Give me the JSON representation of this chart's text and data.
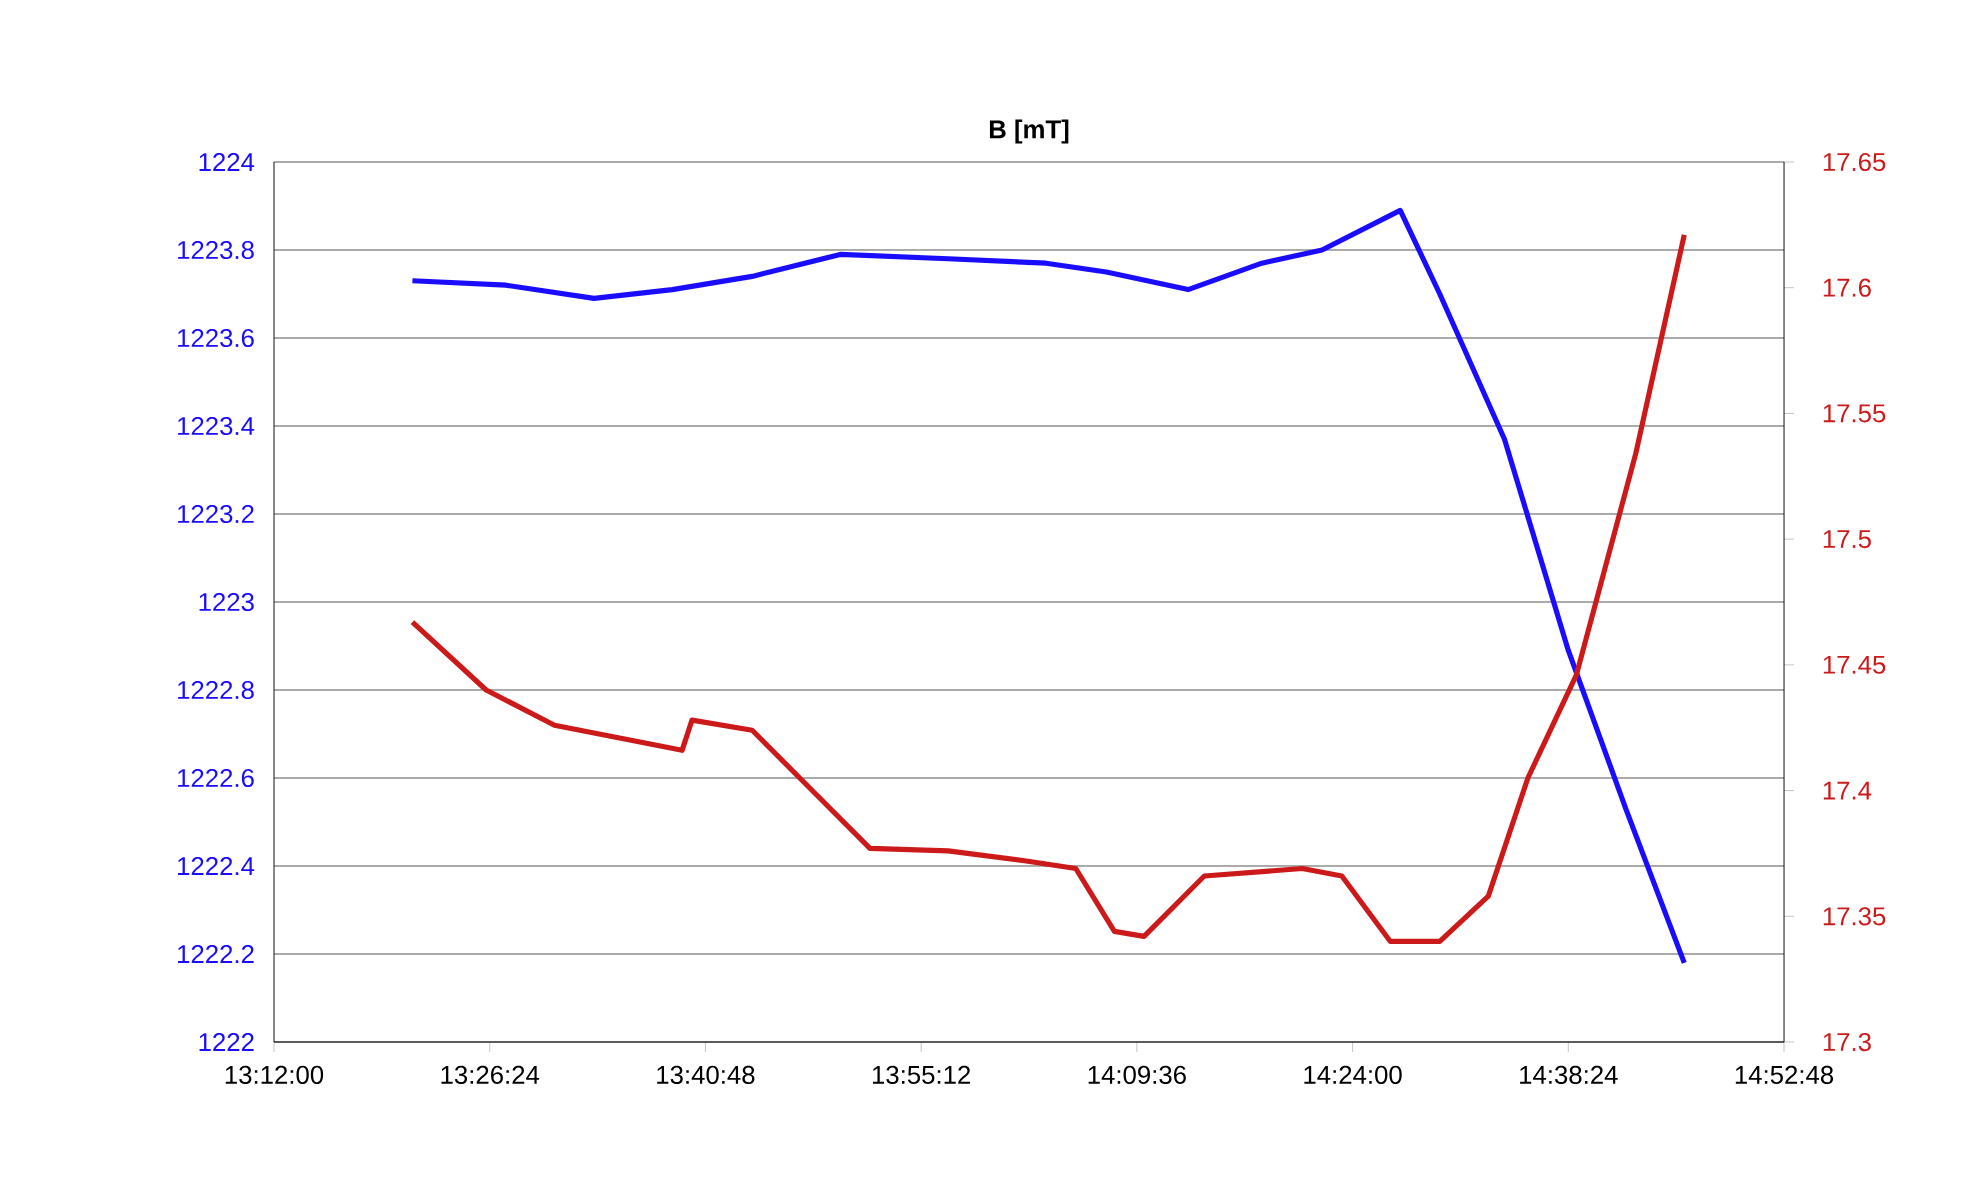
{
  "chart_data": {
    "type": "line",
    "title": "B [mT]",
    "xlim": [
      13.2,
      14.88
    ],
    "xticks": [
      {
        "value": 13.2,
        "label": "13:12:00"
      },
      {
        "value": 13.44,
        "label": "13:26:24"
      },
      {
        "value": 13.68,
        "label": "13:40:48"
      },
      {
        "value": 13.92,
        "label": "13:55:12"
      },
      {
        "value": 14.16,
        "label": "14:09:36"
      },
      {
        "value": 14.4,
        "label": "14:24:00"
      },
      {
        "value": 14.64,
        "label": "14:38:24"
      },
      {
        "value": 14.88,
        "label": "14:52:48"
      }
    ],
    "ylim": [
      1222,
      1224
    ],
    "yticks": [
      1222,
      1222.2,
      1222.4,
      1222.6,
      1222.8,
      1223,
      1223.2,
      1223.4,
      1223.6,
      1223.8,
      1224
    ],
    "y2lim": [
      17.3,
      17.65
    ],
    "y2ticks": [
      17.3,
      17.35,
      17.4,
      17.45,
      17.5,
      17.55,
      17.6,
      17.65
    ],
    "grid": "y",
    "series": [
      {
        "color": "#1a0dff",
        "x": [
          13.354,
          13.458,
          13.556,
          13.643,
          13.732,
          13.83,
          13.95,
          14.059,
          14.126,
          14.217,
          14.299,
          14.366,
          14.453,
          14.497,
          14.569,
          14.64,
          14.704,
          14.769
        ],
        "values": [
          1223.73,
          1223.72,
          1223.69,
          1223.71,
          1223.74,
          1223.79,
          1223.78,
          1223.77,
          1223.75,
          1223.71,
          1223.77,
          1223.8,
          1223.89,
          1223.7,
          1223.37,
          1222.89,
          1222.53,
          1222.18
        ]
      },
      {
        "color": "#cc1a1a",
        "axis": "y2",
        "x": [
          13.354,
          13.436,
          13.512,
          13.654,
          13.665,
          13.732,
          13.796,
          13.863,
          13.95,
          14.037,
          14.092,
          14.135,
          14.168,
          14.235,
          14.344,
          14.388,
          14.442,
          14.497,
          14.551,
          14.595,
          14.649,
          14.715,
          14.769
        ],
        "values": [
          17.467,
          17.44,
          17.426,
          17.416,
          17.428,
          17.424,
          17.401,
          17.377,
          17.376,
          17.372,
          17.369,
          17.344,
          17.342,
          17.366,
          17.369,
          17.366,
          17.34,
          17.34,
          17.358,
          17.405,
          17.446,
          17.534,
          17.621
        ]
      }
    ]
  }
}
